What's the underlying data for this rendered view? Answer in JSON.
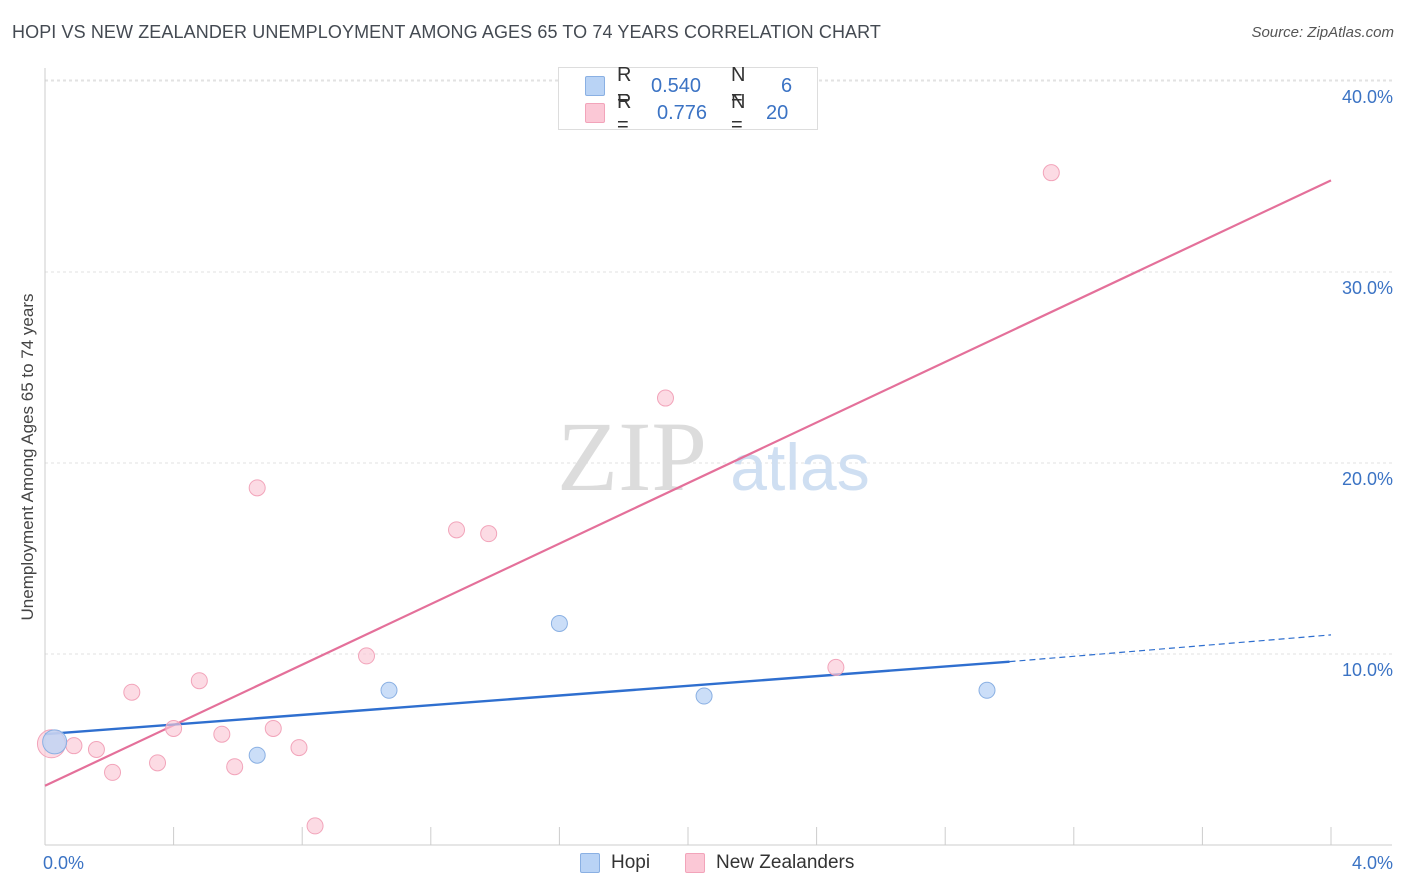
{
  "header": {
    "title": "HOPI VS NEW ZEALANDER UNEMPLOYMENT AMONG AGES 65 TO 74 YEARS CORRELATION CHART",
    "source": "Source: ZipAtlas.com"
  },
  "watermark": {
    "zip": "ZIP",
    "atlas": "atlas"
  },
  "legend": {
    "rows": [
      {
        "r_label": "R =",
        "r_value": "0.540",
        "n_label": "N =",
        "n_value": "6"
      },
      {
        "r_label": "R =",
        "r_value": "0.776",
        "n_label": "N =",
        "n_value": "20"
      }
    ]
  },
  "bottom_legend": {
    "hopi": "Hopi",
    "nz": "New Zealanders"
  },
  "colors": {
    "hopi_fill": "#b9d3f5",
    "hopi_stroke": "#8ab0e3",
    "hopi_line": "#2f6fcf",
    "nz_fill": "#fbc8d6",
    "nz_stroke": "#f2a4ba",
    "nz_line": "#e4709a",
    "axis_label": "#3b73c4",
    "grid": "#e2e2e2"
  },
  "chart_data": {
    "type": "scatter",
    "title": "HOPI VS NEW ZEALANDER UNEMPLOYMENT AMONG AGES 65 TO 74 YEARS CORRELATION CHART",
    "xlabel": "",
    "ylabel": "Unemployment Among Ages 65 to 74 years",
    "xlim": [
      0.0,
      4.0
    ],
    "ylim": [
      0.0,
      42.0
    ],
    "x_tick_labels": [
      "0.0%",
      "4.0%"
    ],
    "y_ticks": [
      10,
      20,
      30,
      40
    ],
    "y_tick_labels": [
      "10.0%",
      "20.0%",
      "30.0%",
      "40.0%"
    ],
    "grid": true,
    "series": [
      {
        "name": "Hopi",
        "r": 0.54,
        "n": 6,
        "points": [
          {
            "x": 0.03,
            "y": 5.4
          },
          {
            "x": 0.66,
            "y": 4.7
          },
          {
            "x": 1.07,
            "y": 8.1
          },
          {
            "x": 1.6,
            "y": 11.6
          },
          {
            "x": 2.05,
            "y": 7.8
          },
          {
            "x": 2.93,
            "y": 8.1
          }
        ],
        "trend": {
          "x_start": 0.0,
          "y_start": 5.8,
          "x_solid_end": 3.0,
          "y_solid_end": 9.6,
          "x_end": 4.0,
          "y_end": 11.0
        }
      },
      {
        "name": "New Zealanders",
        "r": 0.776,
        "n": 20,
        "points": [
          {
            "x": 0.02,
            "y": 5.3
          },
          {
            "x": 0.09,
            "y": 5.2
          },
          {
            "x": 0.16,
            "y": 5.0
          },
          {
            "x": 0.21,
            "y": 3.8
          },
          {
            "x": 0.27,
            "y": 8.0
          },
          {
            "x": 0.35,
            "y": 4.3
          },
          {
            "x": 0.4,
            "y": 6.1
          },
          {
            "x": 0.48,
            "y": 8.6
          },
          {
            "x": 0.55,
            "y": 5.8
          },
          {
            "x": 0.59,
            "y": 4.1
          },
          {
            "x": 0.66,
            "y": 18.7
          },
          {
            "x": 0.71,
            "y": 6.1
          },
          {
            "x": 0.79,
            "y": 5.1
          },
          {
            "x": 0.84,
            "y": 1.0
          },
          {
            "x": 1.0,
            "y": 9.9
          },
          {
            "x": 1.28,
            "y": 16.5
          },
          {
            "x": 1.38,
            "y": 16.3
          },
          {
            "x": 1.93,
            "y": 23.4
          },
          {
            "x": 2.46,
            "y": 9.3
          },
          {
            "x": 3.13,
            "y": 35.2
          }
        ],
        "trend": {
          "x_start": 0.0,
          "y_start": 3.1,
          "x_end": 4.0,
          "y_end": 34.8
        }
      }
    ]
  }
}
